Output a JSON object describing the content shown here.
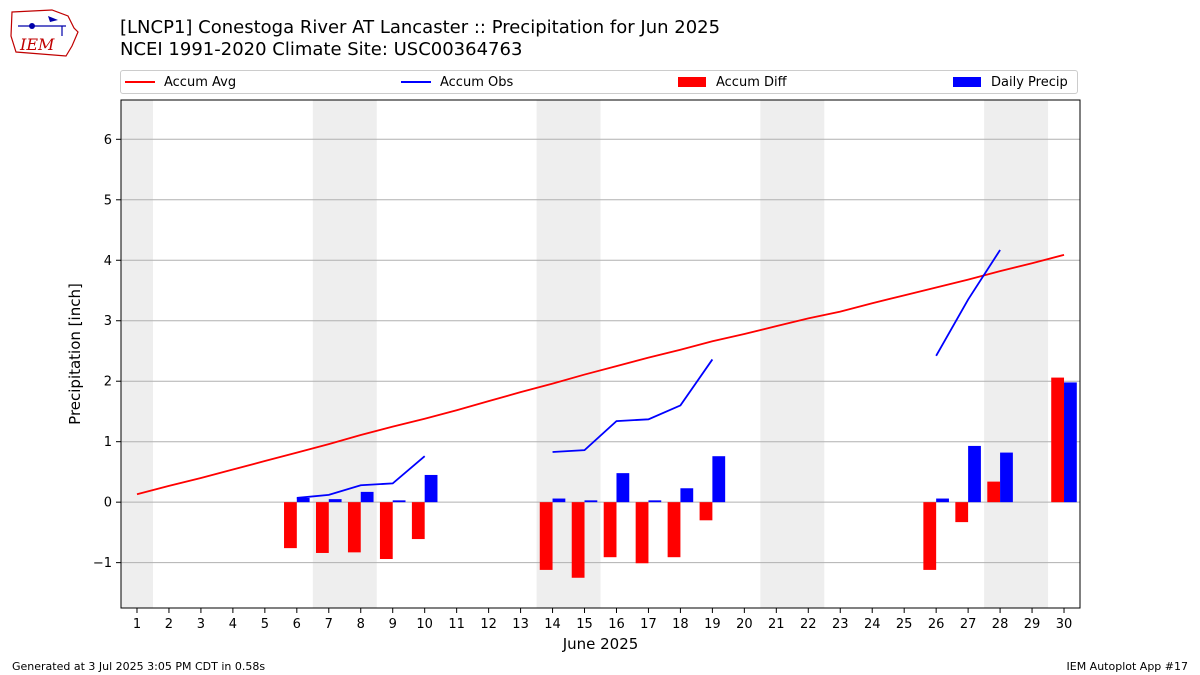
{
  "header": {
    "title_line1": "[LNCP1] Conestoga River  AT Lancaster :: Precipitation for Jun 2025",
    "title_line2": "NCEI 1991-2020 Climate Site: USC00364763",
    "logo_text": "IEM"
  },
  "footer": {
    "generated": "Generated at 3 Jul 2025 3:05 PM CDT in 0.58s",
    "app": "IEM Autoplot App #17"
  },
  "chart_data": {
    "type": "bar",
    "title": "[LNCP1] Conestoga River  AT Lancaster :: Precipitation for Jun 2025",
    "xlabel": "June 2025",
    "ylabel": "Precipitation [inch]",
    "xlim": [
      0.5,
      30.5
    ],
    "ylim": [
      -1.75,
      6.65
    ],
    "x_ticks": [
      1,
      2,
      3,
      4,
      5,
      6,
      7,
      8,
      9,
      10,
      11,
      12,
      13,
      14,
      15,
      16,
      17,
      18,
      19,
      20,
      21,
      22,
      23,
      24,
      25,
      26,
      27,
      28,
      29,
      30
    ],
    "y_ticks": [
      -1,
      0,
      1,
      2,
      3,
      4,
      5,
      6
    ],
    "grid": "horizontal",
    "legend_position": "top",
    "weekend_shading": [
      [
        0.5,
        1.5
      ],
      [
        6.5,
        8.5
      ],
      [
        13.5,
        15.5
      ],
      [
        20.5,
        22.5
      ],
      [
        27.5,
        29.5
      ]
    ],
    "shade_color": "#eeeeee",
    "series": [
      {
        "name": "Accum Avg",
        "kind": "line",
        "color": "#ff0000",
        "x": [
          1,
          2,
          3,
          4,
          5,
          6,
          7,
          8,
          9,
          10,
          11,
          12,
          13,
          14,
          15,
          16,
          17,
          18,
          19,
          20,
          21,
          22,
          23,
          24,
          25,
          26,
          27,
          28,
          29,
          30
        ],
        "values": [
          0.13,
          0.27,
          0.4,
          0.54,
          0.68,
          0.82,
          0.96,
          1.11,
          1.25,
          1.38,
          1.52,
          1.67,
          1.82,
          1.96,
          2.11,
          2.25,
          2.39,
          2.52,
          2.66,
          2.78,
          2.91,
          3.04,
          3.15,
          3.29,
          3.42,
          3.55,
          3.68,
          3.82,
          3.95,
          4.09
        ]
      },
      {
        "name": "Accum Obs",
        "kind": "line",
        "color": "#0000ff",
        "segments": [
          {
            "x": [
              6,
              7,
              8,
              9,
              10
            ],
            "values": [
              0.07,
              0.12,
              0.28,
              0.31,
              0.76
            ]
          },
          {
            "x": [
              14,
              15,
              16,
              17,
              18,
              19
            ],
            "values": [
              0.83,
              0.86,
              1.34,
              1.37,
              1.6,
              2.36
            ]
          },
          {
            "x": [
              26,
              27,
              28
            ],
            "values": [
              2.42,
              3.35,
              4.17
            ]
          }
        ]
      },
      {
        "name": "Accum Diff",
        "kind": "bar",
        "color": "#ff0000",
        "x": [
          6,
          7,
          8,
          9,
          10,
          14,
          15,
          16,
          17,
          18,
          19,
          26,
          27,
          28,
          30
        ],
        "values": [
          -0.76,
          -0.84,
          -0.83,
          -0.94,
          -0.61,
          -1.12,
          -1.25,
          -0.91,
          -1.01,
          -0.91,
          -0.3,
          -1.12,
          -0.33,
          0.34,
          2.06
        ]
      },
      {
        "name": "Daily Precip",
        "kind": "bar",
        "color": "#0000ff",
        "x": [
          6,
          7,
          8,
          9,
          10,
          14,
          15,
          16,
          17,
          18,
          19,
          26,
          27,
          28,
          30
        ],
        "values": [
          0.07,
          0.05,
          0.17,
          0.03,
          0.45,
          0.06,
          0.03,
          0.48,
          0.03,
          0.23,
          0.76,
          0.06,
          0.93,
          0.82,
          1.98
        ]
      }
    ]
  }
}
